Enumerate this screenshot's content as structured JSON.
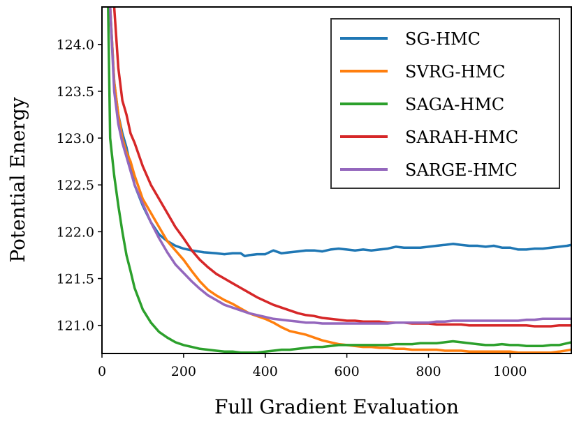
{
  "chart_data": {
    "type": "line",
    "title": "",
    "xlabel": "Full Gradient Evaluation",
    "ylabel": "Potential Energy",
    "xlim": [
      0,
      1150
    ],
    "ylim": [
      120.7,
      124.4
    ],
    "xticks": [
      0,
      200,
      400,
      600,
      800,
      1000
    ],
    "yticks": [
      121.0,
      121.5,
      122.0,
      122.5,
      123.0,
      123.5,
      124.0
    ],
    "grid": false,
    "legend_position": "top-right",
    "series": [
      {
        "name": "SG-HMC",
        "color": "#1f77b4",
        "x": [
          20,
          30,
          40,
          50,
          60,
          70,
          80,
          100,
          120,
          140,
          160,
          180,
          200,
          220,
          250,
          280,
          300,
          320,
          340,
          350,
          360,
          380,
          400,
          420,
          440,
          460,
          480,
          500,
          520,
          540,
          560,
          580,
          600,
          620,
          640,
          660,
          680,
          700,
          720,
          740,
          760,
          780,
          800,
          820,
          840,
          860,
          880,
          900,
          920,
          940,
          960,
          980,
          1000,
          1020,
          1040,
          1060,
          1080,
          1100,
          1120,
          1140,
          1150
        ],
        "y": [
          124.4,
          123.6,
          123.25,
          123.05,
          122.9,
          122.7,
          122.5,
          122.28,
          122.1,
          121.97,
          121.9,
          121.85,
          121.82,
          121.8,
          121.78,
          121.77,
          121.76,
          121.77,
          121.77,
          121.74,
          121.75,
          121.76,
          121.76,
          121.8,
          121.77,
          121.78,
          121.79,
          121.8,
          121.8,
          121.79,
          121.81,
          121.82,
          121.81,
          121.8,
          121.81,
          121.8,
          121.81,
          121.82,
          121.84,
          121.83,
          121.83,
          121.83,
          121.84,
          121.85,
          121.86,
          121.87,
          121.86,
          121.85,
          121.85,
          121.84,
          121.85,
          121.83,
          121.83,
          121.81,
          121.81,
          121.82,
          121.82,
          121.83,
          121.84,
          121.85,
          121.86
        ]
      },
      {
        "name": "SVRG-HMC",
        "color": "#ff7f0e",
        "x": [
          20,
          30,
          40,
          50,
          60,
          70,
          80,
          100,
          120,
          140,
          160,
          180,
          200,
          220,
          240,
          260,
          280,
          300,
          320,
          340,
          360,
          380,
          400,
          420,
          440,
          460,
          480,
          500,
          520,
          540,
          560,
          580,
          600,
          620,
          640,
          660,
          680,
          700,
          720,
          740,
          760,
          780,
          800,
          820,
          840,
          860,
          880,
          900,
          920,
          940,
          960,
          980,
          1000,
          1020,
          1040,
          1060,
          1080,
          1100,
          1120,
          1150
        ],
        "y": [
          124.4,
          123.6,
          123.25,
          123.0,
          122.85,
          122.75,
          122.6,
          122.35,
          122.2,
          122.05,
          121.9,
          121.8,
          121.7,
          121.58,
          121.47,
          121.38,
          121.32,
          121.27,
          121.23,
          121.18,
          121.13,
          121.1,
          121.07,
          121.03,
          120.98,
          120.94,
          120.92,
          120.9,
          120.87,
          120.84,
          120.82,
          120.8,
          120.79,
          120.78,
          120.77,
          120.77,
          120.76,
          120.76,
          120.75,
          120.75,
          120.74,
          120.74,
          120.74,
          120.74,
          120.73,
          120.73,
          120.73,
          120.72,
          120.72,
          120.72,
          120.72,
          120.72,
          120.72,
          120.71,
          120.71,
          120.71,
          120.71,
          120.71,
          120.72,
          120.74
        ]
      },
      {
        "name": "SAGA-HMC",
        "color": "#2ca02c",
        "x": [
          15,
          20,
          30,
          40,
          50,
          60,
          70,
          80,
          100,
          120,
          140,
          160,
          180,
          200,
          220,
          240,
          260,
          280,
          300,
          320,
          340,
          360,
          380,
          400,
          420,
          440,
          460,
          480,
          500,
          520,
          540,
          560,
          580,
          600,
          620,
          640,
          660,
          680,
          700,
          720,
          740,
          760,
          780,
          800,
          820,
          840,
          860,
          880,
          900,
          920,
          940,
          960,
          980,
          1000,
          1020,
          1040,
          1060,
          1080,
          1100,
          1120,
          1150
        ],
        "y": [
          124.4,
          123.0,
          122.6,
          122.28,
          122.0,
          121.75,
          121.58,
          121.4,
          121.17,
          121.03,
          120.93,
          120.87,
          120.82,
          120.79,
          120.77,
          120.75,
          120.74,
          120.73,
          120.72,
          120.72,
          120.71,
          120.71,
          120.71,
          120.72,
          120.73,
          120.74,
          120.74,
          120.75,
          120.76,
          120.77,
          120.77,
          120.78,
          120.79,
          120.79,
          120.79,
          120.79,
          120.79,
          120.79,
          120.79,
          120.8,
          120.8,
          120.8,
          120.81,
          120.81,
          120.81,
          120.82,
          120.83,
          120.82,
          120.81,
          120.8,
          120.79,
          120.79,
          120.8,
          120.79,
          120.79,
          120.78,
          120.78,
          120.78,
          120.79,
          120.79,
          120.82
        ]
      },
      {
        "name": "SARAH-HMC",
        "color": "#d62728",
        "x": [
          30,
          40,
          50,
          60,
          70,
          80,
          100,
          120,
          140,
          160,
          180,
          200,
          220,
          240,
          260,
          280,
          300,
          320,
          340,
          360,
          380,
          400,
          420,
          440,
          460,
          480,
          500,
          520,
          540,
          560,
          580,
          600,
          620,
          640,
          660,
          680,
          700,
          720,
          740,
          760,
          780,
          800,
          820,
          840,
          860,
          880,
          900,
          920,
          940,
          960,
          980,
          1000,
          1020,
          1040,
          1060,
          1080,
          1100,
          1120,
          1150
        ],
        "y": [
          124.4,
          123.75,
          123.4,
          123.25,
          123.05,
          122.95,
          122.7,
          122.5,
          122.35,
          122.2,
          122.05,
          121.93,
          121.8,
          121.7,
          121.62,
          121.55,
          121.5,
          121.45,
          121.4,
          121.35,
          121.3,
          121.26,
          121.22,
          121.19,
          121.16,
          121.13,
          121.11,
          121.1,
          121.08,
          121.07,
          121.06,
          121.05,
          121.05,
          121.04,
          121.04,
          121.04,
          121.03,
          121.03,
          121.03,
          121.02,
          121.02,
          121.02,
          121.01,
          121.01,
          121.01,
          121.01,
          121.0,
          121.0,
          121.0,
          121.0,
          121.0,
          121.0,
          121.0,
          121.0,
          120.99,
          120.99,
          120.99,
          121.0,
          121.0
        ]
      },
      {
        "name": "SARGE-HMC",
        "color": "#9467bd",
        "x": [
          20,
          30,
          40,
          50,
          60,
          70,
          80,
          100,
          120,
          140,
          160,
          180,
          200,
          220,
          240,
          260,
          280,
          300,
          320,
          340,
          360,
          380,
          400,
          420,
          440,
          460,
          480,
          500,
          520,
          540,
          560,
          580,
          600,
          620,
          640,
          660,
          680,
          700,
          720,
          740,
          760,
          780,
          800,
          820,
          840,
          860,
          880,
          900,
          920,
          940,
          960,
          980,
          1000,
          1020,
          1040,
          1060,
          1080,
          1100,
          1120,
          1150
        ],
        "y": [
          124.4,
          123.5,
          123.15,
          122.95,
          122.8,
          122.65,
          122.5,
          122.3,
          122.1,
          121.93,
          121.78,
          121.65,
          121.56,
          121.47,
          121.39,
          121.32,
          121.27,
          121.22,
          121.19,
          121.16,
          121.13,
          121.11,
          121.09,
          121.07,
          121.06,
          121.05,
          121.04,
          121.03,
          121.03,
          121.02,
          121.02,
          121.02,
          121.02,
          121.02,
          121.02,
          121.02,
          121.02,
          121.02,
          121.03,
          121.03,
          121.03,
          121.03,
          121.03,
          121.04,
          121.04,
          121.05,
          121.05,
          121.05,
          121.05,
          121.05,
          121.05,
          121.05,
          121.05,
          121.05,
          121.06,
          121.06,
          121.07,
          121.07,
          121.07,
          121.07
        ]
      }
    ]
  }
}
